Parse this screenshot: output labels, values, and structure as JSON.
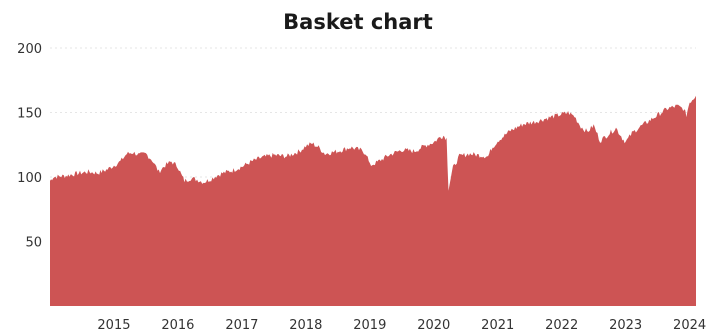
{
  "chart_data": {
    "type": "area",
    "title": "Basket chart",
    "xlabel": "",
    "ylabel": "",
    "ylim": [
      0,
      200
    ],
    "xlim": [
      2014.0,
      2024.1
    ],
    "yticks": [
      50,
      100,
      150,
      200
    ],
    "xticks": [
      2015,
      2016,
      2017,
      2018,
      2019,
      2020,
      2021,
      2022,
      2023,
      2024
    ],
    "grid": true,
    "legend": "none",
    "color": "#cd5454",
    "series": [
      {
        "x": [
          2014.0,
          2014.05,
          2014.25,
          2014.45,
          2014.6,
          2014.75,
          2014.9,
          2015.0,
          2015.1,
          2015.2,
          2015.3,
          2015.4,
          2015.5,
          2015.6,
          2015.7,
          2015.8,
          2015.9,
          2016.0,
          2016.05,
          2016.1,
          2016.2,
          2016.3,
          2016.4,
          2016.5,
          2016.6,
          2016.7,
          2016.85,
          2017.0,
          2017.15,
          2017.3,
          2017.5,
          2017.7,
          2017.9,
          2018.0,
          2018.1,
          2018.2,
          2018.3,
          2018.5,
          2018.7,
          2018.85,
          2018.95,
          2019.0,
          2019.1,
          2019.3,
          2019.5,
          2019.7,
          2019.85,
          2020.0,
          2020.1,
          2020.15,
          2020.2,
          2020.23,
          2020.3,
          2020.4,
          2020.55,
          2020.7,
          2020.85,
          2020.9,
          2021.0,
          2021.2,
          2021.4,
          2021.6,
          2021.8,
          2021.95,
          2022.1,
          2022.2,
          2022.3,
          2022.4,
          2022.5,
          2022.6,
          2022.75,
          2022.85,
          2022.95,
          2023.0,
          2023.1,
          2023.2,
          2023.35,
          2023.5,
          2023.65,
          2023.8,
          2023.9,
          2023.95,
          2024.0,
          2024.1
        ],
        "values": [
          97,
          100,
          101,
          103,
          104,
          103,
          106,
          109,
          112,
          118,
          119,
          117,
          118,
          113,
          104,
          109,
          112,
          108,
          102,
          97,
          99,
          98,
          96,
          98,
          101,
          103,
          105,
          108,
          112,
          115,
          117,
          116,
          120,
          124,
          126,
          123,
          118,
          120,
          123,
          121,
          118,
          109,
          111,
          117,
          121,
          120,
          124,
          127,
          131,
          132,
          130,
          91,
          107,
          116,
          118,
          117,
          116,
          122,
          128,
          136,
          141,
          143,
          146,
          148,
          150,
          147,
          139,
          135,
          140,
          128,
          134,
          138,
          130,
          127,
          134,
          138,
          143,
          148,
          153,
          155,
          153,
          148,
          158,
          163
        ]
      }
    ]
  }
}
